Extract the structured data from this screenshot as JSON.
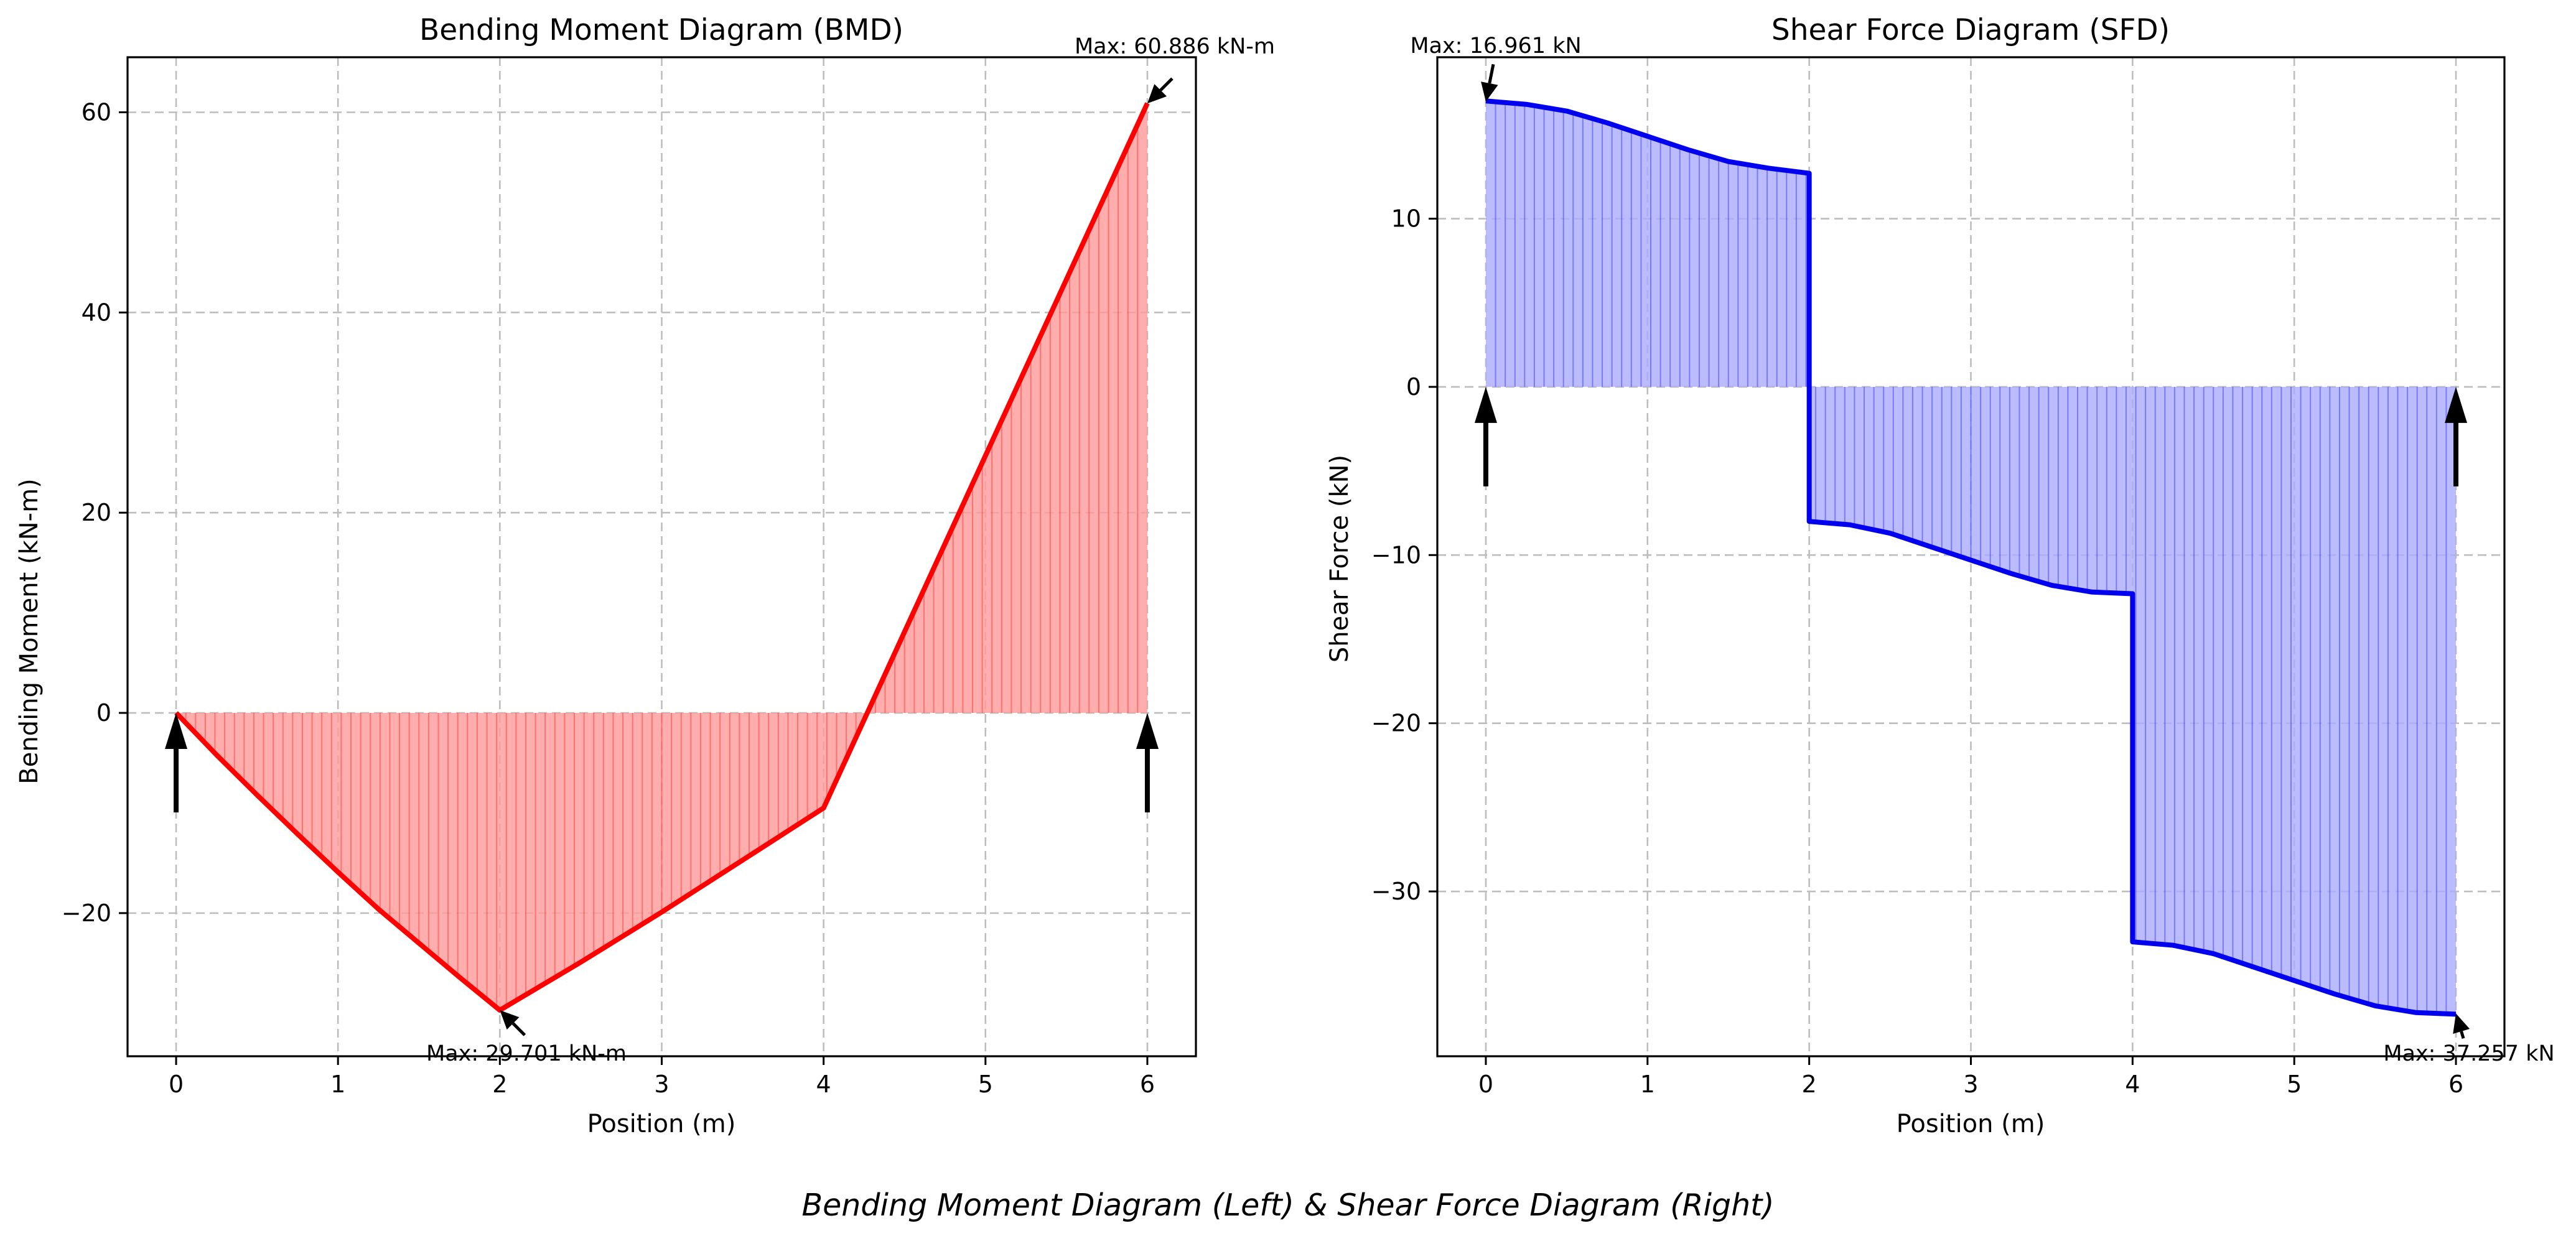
{
  "figure_title": "Bending Moment Diagram (Left) & Shear Force Diagram (Right)",
  "chart_data": [
    {
      "type": "area",
      "title": "Bending Moment Diagram (BMD)",
      "xlabel": "Position (m)",
      "ylabel": "Bending Moment (kN-m)",
      "xlim": [
        -0.3,
        6.3
      ],
      "ylim": [
        -34.3,
        65.5
      ],
      "xticks": [
        0,
        1,
        2,
        3,
        4,
        5,
        6
      ],
      "yticks": [
        -20,
        0,
        20,
        40,
        60
      ],
      "grid": true,
      "line_color": "#ff0000",
      "fill_color": "#ff9999",
      "series": [
        {
          "x": [
            0,
            0.25,
            0.5,
            0.75,
            1,
            1.25,
            1.5,
            1.75,
            2,
            2.25,
            2.5,
            2.75,
            3,
            3.25,
            3.5,
            3.75,
            4,
            4.5,
            5,
            5.5,
            6
          ],
          "values": [
            0,
            -4.2,
            -8.2,
            -12.1,
            -15.9,
            -19.6,
            -23.0,
            -26.4,
            -29.7,
            -27.3,
            -24.9,
            -22.4,
            -19.9,
            -17.3,
            -14.7,
            -12.1,
            -9.5,
            8.1,
            25.7,
            43.3,
            60.9
          ]
        }
      ],
      "annotations": [
        {
          "text": "Max: 60.886 kN-m",
          "x": 6,
          "y": 60.886
        },
        {
          "text": "Max: 29.701 kN-m",
          "x": 2,
          "y": -29.701
        }
      ],
      "supports": [
        0,
        6
      ]
    },
    {
      "type": "area",
      "title": "Shear Force Diagram (SFD)",
      "xlabel": "Position (m)",
      "ylabel": "Shear Force (kN)",
      "xlim": [
        -0.3,
        6.3
      ],
      "ylim": [
        -39.8,
        19.6
      ],
      "xticks": [
        0,
        1,
        2,
        3,
        4,
        5,
        6
      ],
      "yticks": [
        -30,
        -20,
        -10,
        0,
        10
      ],
      "grid": true,
      "line_color": "#0000ee",
      "fill_color": "#aaaaff",
      "series": [
        {
          "x": [
            0,
            0.25,
            0.5,
            0.75,
            1,
            1.25,
            1.5,
            1.75,
            2,
            2,
            2.25,
            2.5,
            2.75,
            3,
            3.25,
            3.5,
            3.75,
            4,
            4,
            4.25,
            4.5,
            4.75,
            5,
            5.25,
            5.5,
            5.75,
            6
          ],
          "values": [
            17.0,
            16.8,
            16.4,
            15.7,
            14.9,
            14.1,
            13.4,
            13.0,
            12.7,
            -8.0,
            -8.2,
            -8.7,
            -9.5,
            -10.3,
            -11.1,
            -11.8,
            -12.2,
            -12.3,
            -33.0,
            -33.2,
            -33.7,
            -34.5,
            -35.3,
            -36.1,
            -36.8,
            -37.2,
            -37.3
          ]
        }
      ],
      "annotations": [
        {
          "text": "Max: 16.961 kN",
          "x": 0,
          "y": 16.961
        },
        {
          "text": "Max: 37.257 kN",
          "x": 6,
          "y": -37.257
        }
      ],
      "supports": [
        0,
        6
      ]
    }
  ]
}
